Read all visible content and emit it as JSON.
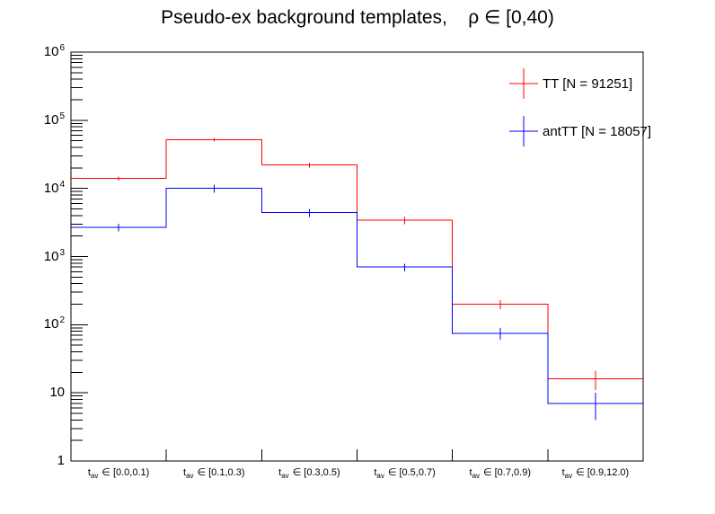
{
  "chart_data": {
    "type": "line",
    "style": "step-histogram",
    "title": "Pseudo-ex background templates,    ρ ∈ [0,40)",
    "xlabel": "",
    "ylabel": "",
    "ylim": [
      1,
      1000000
    ],
    "log_y": true,
    "grid": false,
    "frame_color": "#000000",
    "background_color": "#ffffff",
    "legend_position": "top-right",
    "y_tick_labels": [
      {
        "base": "1",
        "exp": ""
      },
      {
        "base": "10",
        "exp": ""
      },
      {
        "base": "10",
        "exp": "2"
      },
      {
        "base": "10",
        "exp": "3"
      },
      {
        "base": "10",
        "exp": "4"
      },
      {
        "base": "10",
        "exp": "5"
      },
      {
        "base": "10",
        "exp": "6"
      }
    ],
    "categories": [
      {
        "label": "t_av ∈ [0.0,0.1)",
        "var": "t",
        "sub": "av",
        "membership": "∈",
        "range": "[0.0,0.1)"
      },
      {
        "label": "t_av ∈ [0.1,0.3)",
        "var": "t",
        "sub": "av",
        "membership": "∈",
        "range": "[0.1,0.3)"
      },
      {
        "label": "t_av ∈ [0.3,0.5)",
        "var": "t",
        "sub": "av",
        "membership": "∈",
        "range": "[0.3,0.5)"
      },
      {
        "label": "t_av ∈ [0.5,0.7)",
        "var": "t",
        "sub": "av",
        "membership": "∈",
        "range": "[0.5,0.7)"
      },
      {
        "label": "t_av ∈ [0.7,0.9)",
        "var": "t",
        "sub": "av",
        "membership": "∈",
        "range": "[0.7,0.9)"
      },
      {
        "label": "t_av ∈ [0.9,12.0)",
        "var": "t",
        "sub": "av",
        "membership": "∈",
        "range": "[0.9,12.0)"
      }
    ],
    "series": [
      {
        "name": "TT",
        "legend": "TT [N = 91251]",
        "color": "#ff0000",
        "values": [
          14000,
          52000,
          22000,
          3400,
          200,
          16
        ],
        "errors": [
          900,
          3000,
          1800,
          400,
          30,
          5
        ]
      },
      {
        "name": "antTT",
        "legend": "antTT [N = 18057]",
        "color": "#0000ff",
        "values": [
          2700,
          10000,
          4400,
          700,
          75,
          7
        ],
        "errors": [
          350,
          1300,
          570,
          90,
          15,
          3
        ]
      }
    ]
  }
}
